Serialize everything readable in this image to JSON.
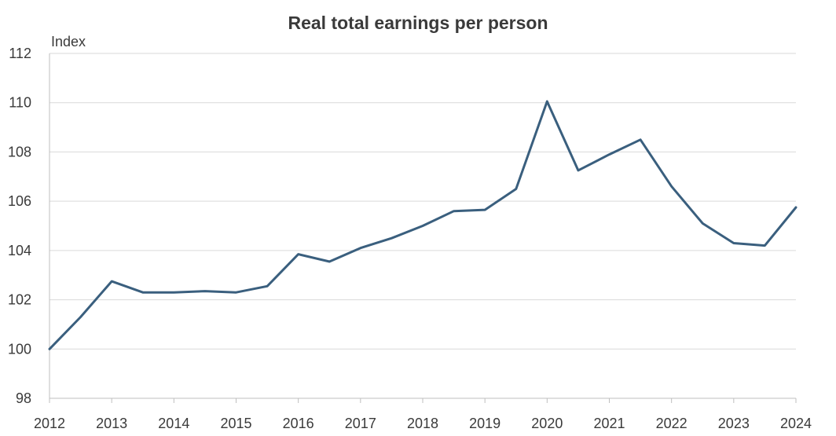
{
  "chart_data": {
    "type": "line",
    "title": "Real total earnings per person",
    "ylabel": "Index",
    "xlabel": "",
    "ylim": [
      98,
      112
    ],
    "yticks": [
      98,
      100,
      102,
      104,
      106,
      108,
      110,
      112
    ],
    "xlim": [
      2012,
      2024
    ],
    "xticks": [
      2012,
      2013,
      2014,
      2015,
      2016,
      2017,
      2018,
      2019,
      2020,
      2021,
      2022,
      2023,
      2024
    ],
    "xtick_labels": [
      "2012",
      "2013",
      "2014",
      "2015",
      "2016",
      "2017",
      "2018",
      "2019",
      "2020",
      "2021",
      "2022",
      "2023",
      "2024"
    ],
    "grid": true,
    "series": [
      {
        "color": "#3a5f7e",
        "points": [
          [
            2012,
            100.0
          ],
          [
            2012.5,
            101.3
          ],
          [
            2013,
            102.75
          ],
          [
            2013.5,
            102.3
          ],
          [
            2014,
            102.3
          ],
          [
            2014.5,
            102.35
          ],
          [
            2015,
            102.3
          ],
          [
            2015.5,
            102.55
          ],
          [
            2016,
            103.85
          ],
          [
            2016.5,
            103.55
          ],
          [
            2017,
            104.1
          ],
          [
            2017.5,
            104.5
          ],
          [
            2018,
            105.0
          ],
          [
            2018.5,
            105.6
          ],
          [
            2019,
            105.65
          ],
          [
            2019.5,
            106.5
          ],
          [
            2020,
            110.05
          ],
          [
            2020.5,
            107.25
          ],
          [
            2021,
            107.9
          ],
          [
            2021.5,
            108.5
          ],
          [
            2022,
            106.6
          ],
          [
            2022.5,
            105.1
          ],
          [
            2023,
            104.3
          ],
          [
            2023.5,
            104.2
          ],
          [
            2024,
            105.75
          ]
        ]
      }
    ]
  }
}
